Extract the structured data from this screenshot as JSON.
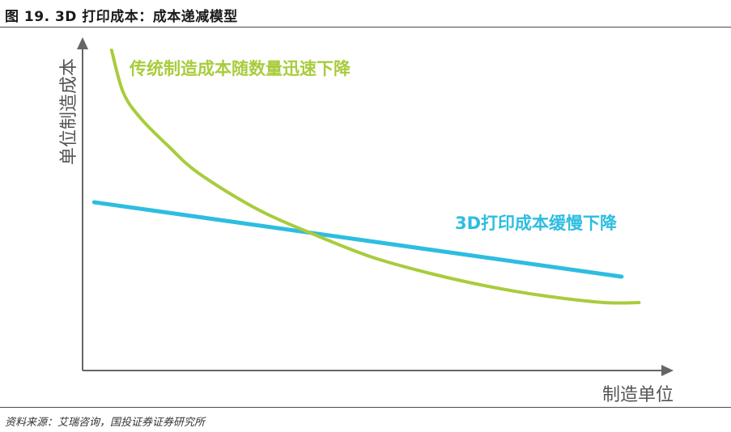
{
  "figure": {
    "title": "图 19. 3D 打印成本：成本递减模型",
    "source": "资料来源：艾瑞咨询，国投证券证券研究所"
  },
  "chart_data": {
    "type": "line",
    "title": "",
    "xlabel": "制造单位",
    "ylabel": "单位制造成本",
    "x_scale": "qualitative",
    "y_scale": "qualitative",
    "grid": false,
    "legend": "none",
    "xlim": [
      0,
      1
    ],
    "ylim": [
      0,
      1
    ],
    "series": [
      {
        "name": "传统制造成本随数量迅速下降",
        "color": "#a8cc3c",
        "x": [
          0.05,
          0.07,
          0.1,
          0.15,
          0.2,
          0.3,
          0.4,
          0.5,
          0.6,
          0.7,
          0.8,
          0.9,
          0.96
        ],
        "y": [
          0.99,
          0.86,
          0.78,
          0.69,
          0.61,
          0.5,
          0.42,
          0.35,
          0.3,
          0.26,
          0.23,
          0.21,
          0.21
        ]
      },
      {
        "name": "3D打印成本缓慢下降",
        "color": "#2dbde0",
        "x": [
          0.02,
          0.93
        ],
        "y": [
          0.52,
          0.29
        ]
      }
    ]
  }
}
